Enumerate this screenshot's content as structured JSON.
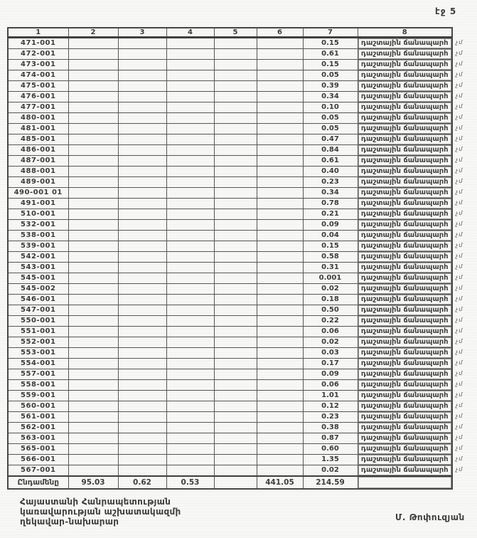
{
  "page": {
    "label": "էջ 5"
  },
  "table": {
    "headers": [
      "1",
      "2",
      "3",
      "4",
      "5",
      "6",
      "7",
      "8"
    ],
    "rows": [
      {
        "code": "471-001",
        "value": "0.15",
        "category": "դաշտային ճանապարհ",
        "margin": "չմ"
      },
      {
        "code": "472-001",
        "value": "0.61",
        "category": "դաշտային ճանապարհ",
        "margin": "չմ"
      },
      {
        "code": "473-001",
        "value": "0.15",
        "category": "դաշտային ճանապարհ",
        "margin": "չմ"
      },
      {
        "code": "474-001",
        "value": "0.05",
        "category": "դաշտային ճանապարհ",
        "margin": "չմ"
      },
      {
        "code": "475-001",
        "value": "0.39",
        "category": "դաշտային ճանապարհ",
        "margin": "չմ"
      },
      {
        "code": "476-001",
        "value": "0.34",
        "category": "դաշտային ճանապարհ",
        "margin": "չմ"
      },
      {
        "code": "477-001",
        "value": "0.10",
        "category": "դաշտային ճանապարհ",
        "margin": "չմ"
      },
      {
        "code": "480-001",
        "value": "0.05",
        "category": "դաշտային ճանապարհ",
        "margin": "չմ"
      },
      {
        "code": "481-001",
        "value": "0.05",
        "category": "դաշտային ճանապարհ",
        "margin": "չմ"
      },
      {
        "code": "485-001",
        "value": "0.47",
        "category": "դաշտային ճանապարհ",
        "margin": "չմ"
      },
      {
        "code": "486-001",
        "value": "0.84",
        "category": "դաշտային ճանապարհ",
        "margin": "չմ"
      },
      {
        "code": "487-001",
        "value": "0.61",
        "category": "դաշտային ճանապարհ",
        "margin": "չմ"
      },
      {
        "code": "488-001",
        "value": "0.40",
        "category": "դաշտային ճանապարհ",
        "margin": "չմ"
      },
      {
        "code": "489-001",
        "value": "0.23",
        "category": "դաշտային ճանապարհ",
        "margin": "չմ"
      },
      {
        "code": "490-001 01",
        "value": "0.34",
        "category": "դաշտային ճանապարհ",
        "margin": "չմ"
      },
      {
        "code": "491-001",
        "value": "0.78",
        "category": "դաշտային ճանապարհ",
        "margin": "չմ"
      },
      {
        "code": "510-001",
        "value": "0.21",
        "category": "դաշտային ճանապարհ",
        "margin": "չմ"
      },
      {
        "code": "532-001",
        "value": "0.09",
        "category": "դաշտային ճանապարհ",
        "margin": "չմ"
      },
      {
        "code": "538-001",
        "value": "0.04",
        "category": "դաշտային ճանապարհ",
        "margin": "չմ"
      },
      {
        "code": "539-001",
        "value": "0.15",
        "category": "դաշտային ճանապարհ",
        "margin": "չմ"
      },
      {
        "code": "542-001",
        "value": "0.58",
        "category": "դաշտային ճանապարհ",
        "margin": "չմ"
      },
      {
        "code": "543-001",
        "value": "0.31",
        "category": "դաշտային ճանապարհ",
        "margin": "չմ"
      },
      {
        "code": "545-001",
        "value": "0.001",
        "category": "դաշտային ճանապարհ",
        "margin": "չմ"
      },
      {
        "code": "545-002",
        "value": "0.02",
        "category": "դաշտային ճանապարհ",
        "margin": "չմ"
      },
      {
        "code": "546-001",
        "value": "0.18",
        "category": "դաշտային ճանապարհ",
        "margin": "չմ"
      },
      {
        "code": "547-001",
        "value": "0.50",
        "category": "դաշտային ճանապարհ",
        "margin": "չմ"
      },
      {
        "code": "550-001",
        "value": "0.22",
        "category": "դաշտային ճանապարհ",
        "margin": "չմ"
      },
      {
        "code": "551-001",
        "value": "0.06",
        "category": "դաշտային ճանապարհ",
        "margin": "չմ"
      },
      {
        "code": "552-001",
        "value": "0.02",
        "category": "դաշտային ճանապարհ",
        "margin": "չմ"
      },
      {
        "code": "553-001",
        "value": "0.03",
        "category": "դաշտային ճանապարհ",
        "margin": "չմ"
      },
      {
        "code": "554-001",
        "value": "0.17",
        "category": "դաշտային ճանապարհ",
        "margin": "չմ"
      },
      {
        "code": "557-001",
        "value": "0.09",
        "category": "դաշտային ճանապարհ",
        "margin": "չմ"
      },
      {
        "code": "558-001",
        "value": "0.06",
        "category": "դաշտային ճանապարհ",
        "margin": "չմ"
      },
      {
        "code": "559-001",
        "value": "1.01",
        "category": "դաշտային ճանապարհ",
        "margin": "չմ"
      },
      {
        "code": "560-001",
        "value": "0.12",
        "category": "դաշտային ճանապարհ",
        "margin": "չմ"
      },
      {
        "code": "561-001",
        "value": "0.23",
        "category": "դաշտային ճանապարհ",
        "margin": "չմ"
      },
      {
        "code": "562-001",
        "value": "0.38",
        "category": "դաշտային ճանապարհ",
        "margin": "չմ"
      },
      {
        "code": "563-001",
        "value": "0.87",
        "category": "դաշտային ճանապարհ",
        "margin": "չմ"
      },
      {
        "code": "565-001",
        "value": "0.60",
        "category": "դաշտային ճանապարհ",
        "margin": "չմ"
      },
      {
        "code": "566-001",
        "value": "1.35",
        "category": "դաշտային ճանապարհ",
        "margin": "չմ"
      },
      {
        "code": "567-001",
        "value": "0.02",
        "category": "դաշտային ճանապարհ",
        "margin": "չմ"
      }
    ],
    "totals": {
      "label": "Ընդամենը",
      "col2": "95.03",
      "col3": "0.62",
      "col4": "0.53",
      "col6": "441.05",
      "col7": "214.59"
    }
  },
  "footer": {
    "left_lines": [
      "Հայաստանի Հանրապետության",
      "կառավարության աշխատակազմի",
      "ղեկավար-նախարար"
    ],
    "signature": "Մ. Թոփուզյան"
  },
  "colors": {
    "ink": "#3d3d3d",
    "paper": "#f7f7f5"
  }
}
